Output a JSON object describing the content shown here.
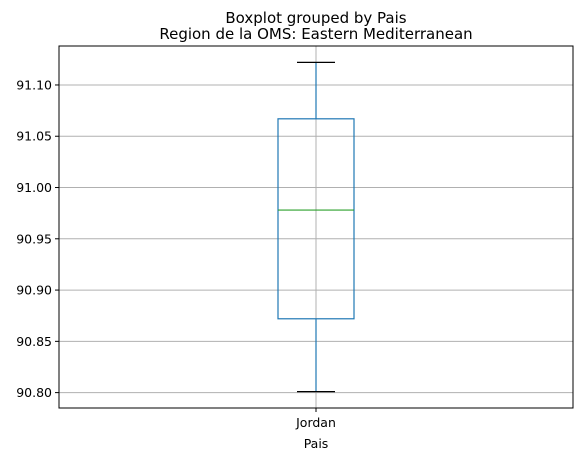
{
  "chart_data": {
    "type": "box",
    "suptitle": "Boxplot grouped by Pais",
    "title": "Region de la OMS: Eastern Mediterranean",
    "xlabel": "Pais",
    "ylabel": "",
    "categories": [
      "Jordan"
    ],
    "boxes": [
      {
        "category": "Jordan",
        "whisker_low": 90.801,
        "q1": 90.872,
        "median": 90.978,
        "q3": 91.067,
        "whisker_high": 91.122
      }
    ],
    "ylim": [
      90.785,
      91.138
    ],
    "yticks": [
      90.8,
      90.85,
      90.9,
      90.95,
      91.0,
      91.05,
      91.1
    ],
    "ytick_labels": [
      "90.80",
      "90.85",
      "90.90",
      "90.95",
      "91.00",
      "91.05",
      "91.10"
    ],
    "grid": true,
    "colors": {
      "box": "#1f77b4",
      "median": "#2ca02c",
      "whisker_cap": "#000000",
      "grid": "#b0b0b0"
    }
  }
}
